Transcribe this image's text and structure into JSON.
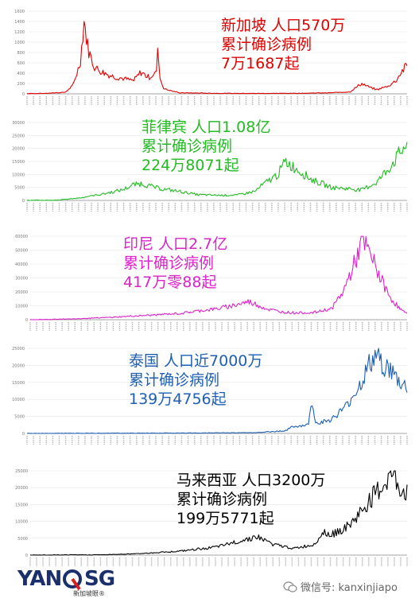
{
  "chart_data": [
    {
      "type": "line",
      "country": "新加坡",
      "color": "#e00000",
      "annotation": [
        "新加坡  人口570万",
        "累计确诊病例",
        "7万1687起"
      ],
      "ylim": [
        0,
        1600
      ],
      "yticks": [
        0,
        200,
        400,
        600,
        800,
        1000,
        1200,
        1400,
        1600
      ],
      "ytick_labels": [
        "0",
        "200",
        "400",
        "600",
        "800",
        "1000",
        "1200",
        "1400",
        "1600"
      ],
      "x": [
        0,
        0.05,
        0.1,
        0.12,
        0.14,
        0.15,
        0.16,
        0.17,
        0.18,
        0.2,
        0.22,
        0.25,
        0.28,
        0.3,
        0.32,
        0.34,
        0.345,
        0.35,
        0.36,
        0.4,
        0.5,
        0.6,
        0.7,
        0.8,
        0.85,
        0.88,
        0.9,
        0.92,
        0.95,
        0.97,
        0.985,
        1.0
      ],
      "y": [
        5,
        10,
        30,
        150,
        600,
        1420,
        900,
        650,
        500,
        420,
        350,
        300,
        250,
        420,
        320,
        400,
        900,
        300,
        100,
        20,
        10,
        8,
        10,
        20,
        40,
        200,
        130,
        80,
        150,
        250,
        420,
        560
      ]
    },
    {
      "type": "line",
      "country": "菲律宾",
      "color": "#22bb22",
      "annotation": [
        "菲律宾  人口1.08亿",
        "累计确诊病例",
        "224万8071起"
      ],
      "ylim": [
        0,
        30000
      ],
      "yticks": [
        0,
        5000,
        10000,
        15000,
        20000,
        25000,
        30000
      ],
      "ytick_labels": [
        "0",
        "5000",
        "10000",
        "15000",
        "20000",
        "25000",
        "30000"
      ],
      "x": [
        0,
        0.08,
        0.14,
        0.2,
        0.25,
        0.28,
        0.3,
        0.35,
        0.4,
        0.45,
        0.5,
        0.55,
        0.6,
        0.62,
        0.66,
        0.68,
        0.72,
        0.75,
        0.8,
        0.85,
        0.88,
        0.92,
        0.95,
        0.98,
        1.0
      ],
      "y": [
        0,
        100,
        1000,
        2500,
        4000,
        6000,
        6500,
        4500,
        3500,
        2200,
        2000,
        2000,
        3500,
        6000,
        10000,
        15000,
        11000,
        8000,
        5000,
        4500,
        4000,
        7000,
        12000,
        18000,
        22000
      ]
    },
    {
      "type": "line",
      "country": "印尼",
      "color": "#dd22cc",
      "annotation": [
        "印尼  人口2.7亿",
        "累计确诊病例",
        "417万零88起"
      ],
      "ylim": [
        0,
        60000
      ],
      "yticks": [
        0,
        10000,
        20000,
        30000,
        40000,
        50000,
        60000
      ],
      "ytick_labels": [
        "0",
        "10000",
        "20000",
        "30000",
        "40000",
        "50000",
        "60000"
      ],
      "x": [
        0,
        0.1,
        0.2,
        0.3,
        0.4,
        0.45,
        0.5,
        0.55,
        0.58,
        0.6,
        0.63,
        0.67,
        0.7,
        0.75,
        0.8,
        0.83,
        0.86,
        0.88,
        0.9,
        0.93,
        0.95,
        0.98,
        1.0
      ],
      "y": [
        0,
        500,
        1500,
        3000,
        4500,
        6500,
        8000,
        11000,
        13000,
        11000,
        7500,
        5500,
        5000,
        5000,
        8000,
        20000,
        40000,
        56000,
        48000,
        30000,
        18000,
        8000,
        4000
      ]
    },
    {
      "type": "line",
      "country": "泰国",
      "color": "#1e5fb4",
      "annotation": [
        "泰国  人口近7000万",
        "累计确诊病例",
        "139万4756起"
      ],
      "ylim": [
        0,
        25000
      ],
      "yticks": [
        0,
        5000,
        10000,
        15000,
        20000,
        25000
      ],
      "ytick_labels": [
        "0",
        "5000",
        "10000",
        "15000",
        "20000",
        "25000"
      ],
      "x": [
        0,
        0.2,
        0.4,
        0.6,
        0.68,
        0.7,
        0.74,
        0.75,
        0.76,
        0.8,
        0.84,
        0.88,
        0.9,
        0.92,
        0.94,
        0.96,
        0.98,
        1.0
      ],
      "y": [
        0,
        50,
        100,
        200,
        800,
        2000,
        2500,
        9500,
        3000,
        4000,
        8000,
        15000,
        20000,
        23000,
        20000,
        18000,
        15000,
        13500
      ]
    },
    {
      "type": "line",
      "country": "马来西亚",
      "color": "#000000",
      "annotation": [
        "马来西亚  人口3200万",
        "累计确诊病例",
        "199万5771起"
      ],
      "ylim": [
        0,
        25000
      ],
      "yticks": [
        0,
        5000,
        10000,
        15000,
        20000,
        25000
      ],
      "ytick_labels": [
        "0",
        "5000",
        "10000",
        "15000",
        "20000",
        "25000"
      ],
      "x": [
        0,
        0.1,
        0.2,
        0.3,
        0.4,
        0.5,
        0.55,
        0.6,
        0.62,
        0.65,
        0.7,
        0.75,
        0.78,
        0.8,
        0.85,
        0.9,
        0.94,
        0.96,
        0.98,
        1.0
      ],
      "y": [
        0,
        50,
        100,
        500,
        1200,
        2500,
        4000,
        5500,
        4500,
        3000,
        2000,
        3000,
        7000,
        6000,
        9000,
        16000,
        21000,
        24000,
        20000,
        18000
      ]
    }
  ],
  "watermark": {
    "brand_left": "YAN",
    "brand_right": "SG",
    "brand_sub": "新加坡眼®",
    "wechat": "微信号: kanxinjiapo"
  },
  "colors": {
    "background": "#ffffff",
    "grid": "#e5e5e5",
    "axis": "#888888",
    "brand": "#1a2f6b",
    "brand_accent": "#d81e1e"
  }
}
